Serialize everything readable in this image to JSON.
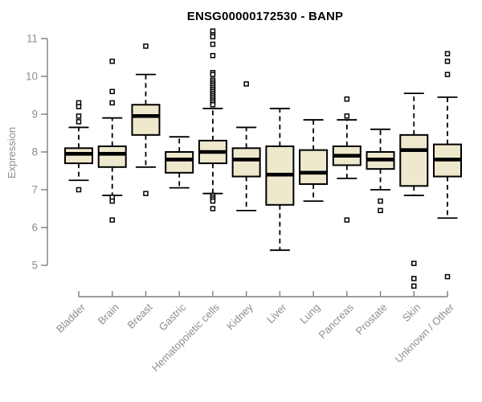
{
  "title": "ENSG00000172530 - BANP",
  "chart_data": {
    "type": "boxplot",
    "title": "ENSG00000172530 - BANP",
    "ylabel": "Expression",
    "xlabel": "",
    "ylim": [
      5,
      11
    ],
    "yticks": [
      5,
      6,
      7,
      8,
      9,
      10,
      11
    ],
    "grid": false,
    "legend": false,
    "x_label_rotation": -45,
    "categories": [
      "Bladder",
      "Brain",
      "Breast",
      "Gastric",
      "Hematopoietic cells",
      "Kidney",
      "Liver",
      "Lung",
      "Pancreas",
      "Prostate",
      "Skin",
      "Unknown / Other"
    ],
    "series": [
      {
        "name": "Bladder",
        "whisker_low": 7.25,
        "q1": 7.7,
        "median": 7.95,
        "q3": 8.1,
        "whisker_high": 8.65,
        "outliers": [
          9.3,
          9.2,
          8.95,
          8.8,
          7.0
        ]
      },
      {
        "name": "Brain",
        "whisker_low": 6.85,
        "q1": 7.6,
        "median": 7.95,
        "q3": 8.15,
        "whisker_high": 8.9,
        "outliers": [
          10.4,
          9.6,
          9.3,
          6.8,
          6.7,
          6.2
        ]
      },
      {
        "name": "Breast",
        "whisker_low": 7.6,
        "q1": 8.45,
        "median": 8.95,
        "q3": 9.25,
        "whisker_high": 10.05,
        "outliers": [
          10.8,
          6.9
        ]
      },
      {
        "name": "Gastric",
        "whisker_low": 7.05,
        "q1": 7.45,
        "median": 7.8,
        "q3": 8.0,
        "whisker_high": 8.4,
        "outliers": []
      },
      {
        "name": "Hematopoietic cells",
        "whisker_low": 6.9,
        "q1": 7.7,
        "median": 8.0,
        "q3": 8.3,
        "whisker_high": 9.15,
        "outliers": [
          11.2,
          11.1,
          11.05,
          10.85,
          10.55,
          10.1,
          10.05,
          9.9,
          9.85,
          9.8,
          9.75,
          9.7,
          9.65,
          9.6,
          9.55,
          9.5,
          9.45,
          9.4,
          9.35,
          9.3,
          9.25,
          6.85,
          6.8,
          6.75,
          6.7,
          6.5
        ]
      },
      {
        "name": "Kidney",
        "whisker_low": 6.45,
        "q1": 7.35,
        "median": 7.8,
        "q3": 8.1,
        "whisker_high": 8.65,
        "outliers": [
          9.8
        ]
      },
      {
        "name": "Liver",
        "whisker_low": 5.4,
        "q1": 6.6,
        "median": 7.4,
        "q3": 8.15,
        "whisker_high": 9.15,
        "outliers": []
      },
      {
        "name": "Lung",
        "whisker_low": 6.7,
        "q1": 7.15,
        "median": 7.45,
        "q3": 8.05,
        "whisker_high": 8.85,
        "outliers": []
      },
      {
        "name": "Pancreas",
        "whisker_low": 7.3,
        "q1": 7.65,
        "median": 7.9,
        "q3": 8.15,
        "whisker_high": 8.85,
        "outliers": [
          9.4,
          8.95,
          6.2
        ]
      },
      {
        "name": "Prostate",
        "whisker_low": 7.0,
        "q1": 7.55,
        "median": 7.8,
        "q3": 8.0,
        "whisker_high": 8.6,
        "outliers": [
          6.7,
          6.45
        ]
      },
      {
        "name": "Skin",
        "whisker_low": 6.85,
        "q1": 7.1,
        "median": 8.05,
        "q3": 8.45,
        "whisker_high": 9.55,
        "outliers": [
          5.05,
          4.65,
          4.45
        ]
      },
      {
        "name": "Unknown / Other",
        "whisker_low": 6.25,
        "q1": 7.35,
        "median": 7.8,
        "q3": 8.2,
        "whisker_high": 9.45,
        "outliers": [
          10.6,
          10.4,
          10.05,
          4.7
        ]
      }
    ],
    "colors": {
      "box_fill": "#EEE8CD",
      "box_border": "#000000",
      "median": "#000000",
      "whisker": "#000000",
      "outlier": "#000000",
      "axis": "#7E7E7E",
      "tick_label": "#8E8E8E",
      "title": "#000000",
      "background": "#FFFFFF"
    }
  }
}
